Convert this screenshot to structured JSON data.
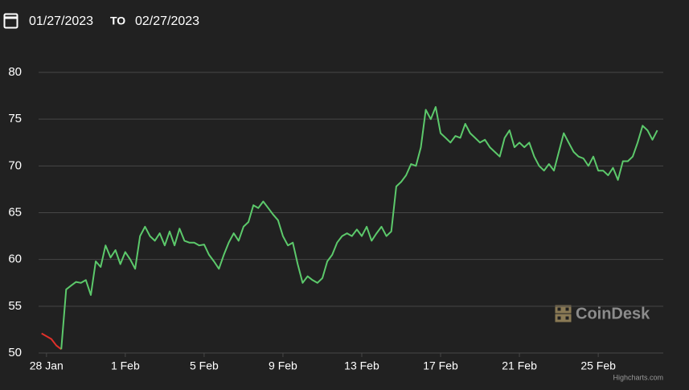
{
  "chart_data": {
    "type": "line",
    "date_from": "01/27/2023",
    "date_separator": "TO",
    "date_to": "02/27/2023",
    "watermark": "CoinDesk",
    "credits": "Highcharts.com",
    "color": "#5cc96b",
    "down_color": "#e0302a",
    "grid": true,
    "xlim": [
      -0.4,
      31.3
    ],
    "ylim": [
      50,
      80
    ],
    "yticks": [
      50,
      55,
      60,
      65,
      70,
      75,
      80
    ],
    "xticks": [
      {
        "value": 0,
        "label": "28 Jan"
      },
      {
        "value": 4,
        "label": "1 Feb"
      },
      {
        "value": 8,
        "label": "5 Feb"
      },
      {
        "value": 12,
        "label": "9 Feb"
      },
      {
        "value": 16,
        "label": "13 Feb"
      },
      {
        "value": 20,
        "label": "17 Feb"
      },
      {
        "value": 24,
        "label": "21 Feb"
      },
      {
        "value": 28,
        "label": "25 Feb"
      }
    ],
    "x": [
      -0.25,
      0,
      0.25,
      0.5,
      0.75,
      1,
      1.25,
      1.5,
      1.75,
      2,
      2.25,
      2.5,
      2.75,
      3,
      3.25,
      3.5,
      3.75,
      4,
      4.25,
      4.5,
      4.75,
      5,
      5.25,
      5.5,
      5.75,
      6,
      6.25,
      6.5,
      6.75,
      7,
      7.25,
      7.5,
      7.75,
      8,
      8.25,
      8.5,
      8.75,
      9,
      9.25,
      9.5,
      9.75,
      10,
      10.25,
      10.5,
      10.75,
      11,
      11.25,
      11.5,
      11.75,
      12,
      12.25,
      12.5,
      12.75,
      13,
      13.25,
      13.5,
      13.75,
      14,
      14.25,
      14.5,
      14.75,
      15,
      15.25,
      15.5,
      15.75,
      16,
      16.25,
      16.5,
      16.75,
      17,
      17.25,
      17.5,
      17.75,
      18,
      18.25,
      18.5,
      18.75,
      19,
      19.25,
      19.5,
      19.75,
      20,
      20.25,
      20.5,
      20.75,
      21,
      21.25,
      21.5,
      21.75,
      22,
      22.25,
      22.5,
      22.75,
      23,
      23.25,
      23.5,
      23.75,
      24,
      24.25,
      24.5,
      24.75,
      25,
      25.25,
      25.5,
      25.75,
      26,
      26.25,
      26.5,
      26.75,
      27,
      27.25,
      27.5,
      27.75,
      28,
      28.25,
      28.5,
      28.75,
      29,
      29.25,
      29.5,
      29.75,
      30,
      30.25,
      30.5,
      30.75,
      31
    ],
    "values": [
      52.1,
      51.8,
      51.5,
      50.8,
      50.4,
      56.8,
      57.2,
      57.6,
      57.5,
      57.8,
      56.2,
      59.8,
      59.2,
      61.5,
      60.2,
      61.0,
      59.5,
      60.8,
      60.0,
      59.0,
      62.5,
      63.5,
      62.5,
      62.0,
      62.8,
      61.5,
      63.0,
      61.5,
      63.3,
      62.0,
      61.8,
      61.8,
      61.5,
      61.6,
      60.5,
      59.8,
      59.0,
      60.5,
      61.8,
      62.8,
      62.0,
      63.5,
      64.0,
      65.8,
      65.5,
      66.2,
      65.5,
      64.8,
      64.2,
      62.5,
      61.5,
      61.8,
      59.5,
      57.5,
      58.2,
      57.8,
      57.5,
      58.0,
      59.8,
      60.5,
      61.8,
      62.5,
      62.8,
      62.5,
      63.2,
      62.5,
      63.5,
      62.0,
      62.8,
      63.5,
      62.5,
      63.0,
      67.8,
      68.3,
      69.0,
      70.2,
      70.0,
      72.0,
      76.0,
      75.0,
      76.3,
      73.5,
      73.0,
      72.5,
      73.2,
      73.0,
      74.5,
      73.5,
      73.0,
      72.5,
      72.8,
      72.0,
      71.5,
      71.0,
      73.0,
      73.8,
      72.0,
      72.5,
      72.0,
      72.5,
      71.0,
      70.0,
      69.5,
      70.2,
      69.5,
      71.5,
      73.5,
      72.5,
      71.5,
      71.0,
      70.8,
      70.0,
      71.0,
      69.5,
      69.5,
      69.0,
      69.8,
      68.5,
      70.5,
      70.5,
      71.0,
      72.5,
      74.3,
      73.8,
      72.8,
      73.8
    ]
  }
}
